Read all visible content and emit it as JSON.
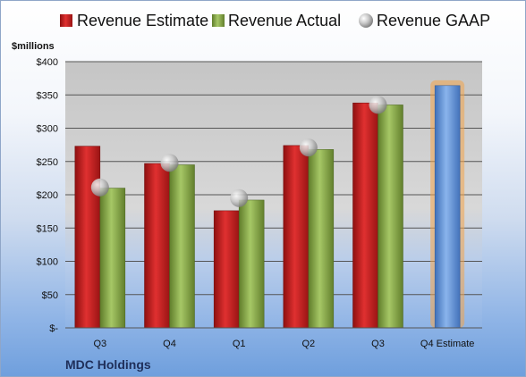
{
  "chart_data": {
    "type": "bar",
    "title": "",
    "ylabel": "$millions",
    "footer": "MDC Holdings",
    "ylim": [
      0,
      400
    ],
    "yticks": [
      {
        "value": 0,
        "label": "$-"
      },
      {
        "value": 50,
        "label": "$50"
      },
      {
        "value": 100,
        "label": "$100"
      },
      {
        "value": 150,
        "label": "$150"
      },
      {
        "value": 200,
        "label": "$200"
      },
      {
        "value": 250,
        "label": "$250"
      },
      {
        "value": 300,
        "label": "$300"
      },
      {
        "value": 350,
        "label": "$350"
      },
      {
        "value": 400,
        "label": "$400"
      }
    ],
    "categories": [
      "Q3",
      "Q4",
      "Q1",
      "Q2",
      "Q3",
      "Q4 Estimate"
    ],
    "series": [
      {
        "name": "Revenue Estimate",
        "values": [
          273,
          247,
          176,
          274,
          338,
          364
        ],
        "color": "#cc2222"
      },
      {
        "name": "Revenue Actual",
        "values": [
          210,
          245,
          192,
          268,
          335,
          null
        ],
        "color": "#8fb24a"
      },
      {
        "name": "Revenue GAAP",
        "values": [
          211,
          248,
          195,
          271,
          335,
          null
        ],
        "color": "#b8b8b8"
      }
    ],
    "estimate_bar_color": "#6d9ee0",
    "estimate_glow_color": "#f3a44a",
    "grid": true,
    "legend_position": "top"
  }
}
